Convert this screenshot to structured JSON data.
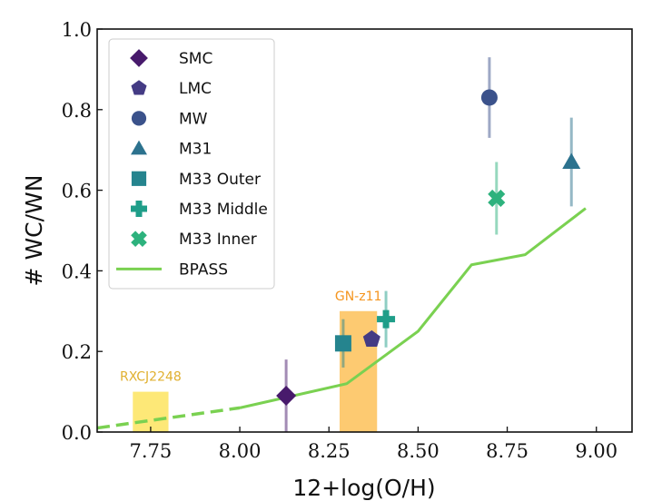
{
  "chart_data": {
    "type": "scatter",
    "title": "",
    "xlabel": "12+log(O/H)",
    "ylabel": "# WC/WN",
    "xlim": [
      7.6,
      9.1
    ],
    "ylim": [
      0.0,
      1.0
    ],
    "xticks": [
      "7.75",
      "8.00",
      "8.25",
      "8.50",
      "8.75",
      "9.00"
    ],
    "yticks": [
      "0.0",
      "0.2",
      "0.4",
      "0.6",
      "0.8",
      "1.0"
    ],
    "grid": false,
    "legend_placement": "top-left",
    "series": [
      {
        "name": "SMC",
        "marker": "diamond",
        "color": "#481a6c",
        "x": 8.13,
        "y": 0.09,
        "yerr_low": 0.0,
        "yerr_high": 0.18
      },
      {
        "name": "LMC",
        "marker": "pentagon",
        "color": "#443b84",
        "x": 8.37,
        "y": 0.23
      },
      {
        "name": "MW",
        "marker": "circle",
        "color": "#3b528b",
        "x": 8.7,
        "y": 0.83,
        "yerr_low": 0.73,
        "yerr_high": 0.93
      },
      {
        "name": "M31",
        "marker": "triangle",
        "color": "#2c728e",
        "x": 8.93,
        "y": 0.67,
        "yerr_low": 0.56,
        "yerr_high": 0.78
      },
      {
        "name": "M33 Outer",
        "marker": "square",
        "color": "#25848e",
        "x": 8.29,
        "y": 0.22,
        "yerr_low": 0.16,
        "yerr_high": 0.28
      },
      {
        "name": "M33 Middle",
        "marker": "plus",
        "color": "#1f9e89",
        "x": 8.41,
        "y": 0.28,
        "yerr_low": 0.21,
        "yerr_high": 0.35
      },
      {
        "name": "M33 Inner",
        "marker": "x",
        "color": "#2db27d",
        "x": 8.72,
        "y": 0.58,
        "yerr_low": 0.49,
        "yerr_high": 0.67
      }
    ],
    "line": {
      "name": "BPASS",
      "color": "#7ad151",
      "dashed": {
        "x": [
          7.6,
          8.0
        ],
        "y": [
          0.01,
          0.06
        ]
      },
      "solid": {
        "x": [
          8.0,
          8.1,
          8.3,
          8.5,
          8.65,
          8.8,
          8.97
        ],
        "y": [
          0.06,
          0.08,
          0.12,
          0.25,
          0.415,
          0.44,
          0.555
        ]
      }
    },
    "regions": [
      {
        "label": "RXCJ2248",
        "x": [
          7.7,
          7.8
        ],
        "y": [
          0.0,
          0.1
        ],
        "fill": "#fde668",
        "text_color": "#e0b030"
      },
      {
        "label": "GN-z11",
        "x": [
          8.28,
          8.385
        ],
        "y": [
          0.0,
          0.3
        ],
        "fill": "#fdc462",
        "text_color": "#f5951f"
      }
    ]
  }
}
